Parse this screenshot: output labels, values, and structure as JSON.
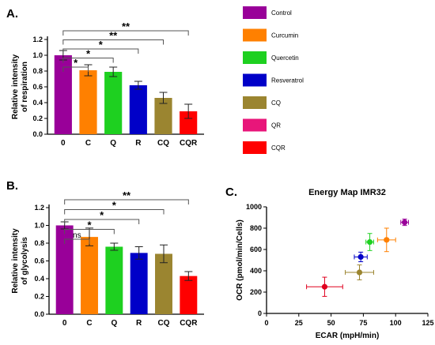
{
  "panels": {
    "a": "A.",
    "b": "B.",
    "c": "C."
  },
  "legend": [
    {
      "label": "Control",
      "color": "#990099"
    },
    {
      "label": "Curcumin",
      "color": "#FF8000"
    },
    {
      "label": "Quercetin",
      "color": "#1ED020"
    },
    {
      "label": "Resveratrol",
      "color": "#0000C8"
    },
    {
      "label": "CQ",
      "color": "#9B8530"
    },
    {
      "label": "QR",
      "color": "#E8167A"
    },
    {
      "label": "CQR",
      "color": "#FF0000"
    }
  ],
  "chart_data": [
    {
      "type": "bar",
      "ylabel": "Relative intensity\nof respiration",
      "categories": [
        "0",
        "C",
        "Q",
        "R",
        "CQ",
        "CQR"
      ],
      "values": [
        1.0,
        0.81,
        0.79,
        0.62,
        0.46,
        0.29
      ],
      "errors": [
        0.06,
        0.07,
        0.06,
        0.05,
        0.07,
        0.09
      ],
      "colors": [
        "#990099",
        "#FF8000",
        "#1ED020",
        "#0000C8",
        "#9B8530",
        "#FF0000"
      ],
      "ylim": [
        0,
        1.2
      ],
      "yticks": [
        0.0,
        0.2,
        0.4,
        0.6,
        0.8,
        1.0,
        1.2
      ],
      "significance": [
        {
          "label": "*",
          "from": 0,
          "to": 1
        },
        {
          "label": "*",
          "from": 0,
          "to": 2
        },
        {
          "label": "*",
          "from": 0,
          "to": 3
        },
        {
          "label": "**",
          "from": 0,
          "to": 4
        },
        {
          "label": "**",
          "from": 0,
          "to": 5
        }
      ]
    },
    {
      "type": "bar",
      "ylabel": "Relative intensity\nof glycolysis",
      "categories": [
        "0",
        "C",
        "Q",
        "R",
        "CQ",
        "CQR"
      ],
      "values": [
        1.0,
        0.87,
        0.76,
        0.69,
        0.68,
        0.43
      ],
      "errors": [
        0.04,
        0.1,
        0.04,
        0.07,
        0.1,
        0.05
      ],
      "colors": [
        "#990099",
        "#FF8000",
        "#1ED020",
        "#0000C8",
        "#9B8530",
        "#FF0000"
      ],
      "ylim": [
        0,
        1.2
      ],
      "yticks": [
        0.0,
        0.2,
        0.4,
        0.6,
        0.8,
        1.0,
        1.2
      ],
      "significance": [
        {
          "label": "ns",
          "from": 0,
          "to": 1
        },
        {
          "label": "*",
          "from": 0,
          "to": 2
        },
        {
          "label": "*",
          "from": 0,
          "to": 3
        },
        {
          "label": "*",
          "from": 0,
          "to": 4
        },
        {
          "label": "**",
          "from": 0,
          "to": 5
        }
      ]
    },
    {
      "type": "scatter",
      "title": "Energy Map IMR32",
      "xlabel": "ECAR (mpH/min)",
      "ylabel": "OCR (pmol/min/Cells)",
      "xlim": [
        0,
        125
      ],
      "ylim": [
        0,
        1000
      ],
      "xticks": [
        0,
        25,
        50,
        75,
        100,
        125
      ],
      "yticks": [
        0,
        200,
        400,
        600,
        800,
        1000
      ],
      "points": [
        {
          "x": 107,
          "y": 855,
          "xerr": 3,
          "yerr": 30,
          "color": "#990099"
        },
        {
          "x": 93,
          "y": 690,
          "xerr": 7,
          "yerr": 110,
          "color": "#FF8000"
        },
        {
          "x": 80,
          "y": 670,
          "xerr": 3,
          "yerr": 80,
          "color": "#1ED020"
        },
        {
          "x": 73,
          "y": 530,
          "xerr": 5,
          "yerr": 45,
          "color": "#0000C8"
        },
        {
          "x": 72,
          "y": 385,
          "xerr": 11,
          "yerr": 70,
          "color": "#9B8530"
        },
        {
          "x": 45,
          "y": 250,
          "xerr": 14,
          "yerr": 90,
          "color": "#E0001E"
        }
      ]
    }
  ]
}
